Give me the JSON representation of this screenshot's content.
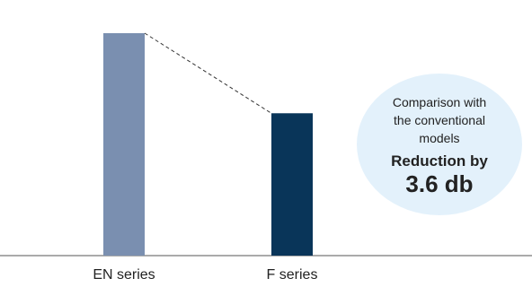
{
  "chart_data": {
    "type": "bar",
    "categories": [
      "EN series",
      "F series"
    ],
    "values": [
      100,
      64
    ],
    "ylim": [
      0,
      100
    ],
    "colors": [
      "#7a8fb0",
      "#093559"
    ],
    "grid": false,
    "annotation": {
      "lines": [
        "Comparison with",
        "the conventional",
        "models"
      ],
      "highlight": "Reduction by",
      "value": "3.6 db",
      "background": "#e3f1fb"
    }
  }
}
